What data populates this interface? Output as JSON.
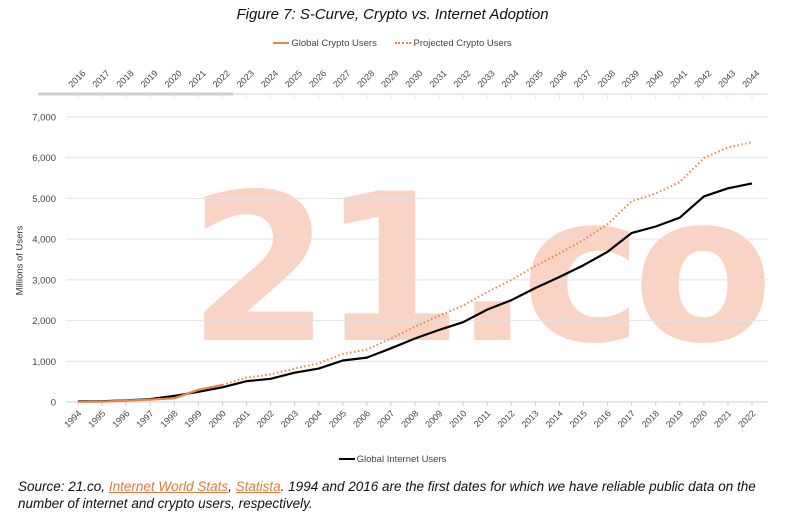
{
  "chart_data": {
    "type": "line",
    "title": "Figure 7: S-Curve, Crypto vs. Internet Adoption",
    "ylabel": "Millions of Users",
    "ylim": [
      0,
      7000
    ],
    "yticks": [
      "0",
      "1,000",
      "2,000",
      "3,000",
      "4,000",
      "5,000",
      "6,000",
      "7,000"
    ],
    "grid": true,
    "x_bottom": [
      "1994",
      "1995",
      "1996",
      "1997",
      "1998",
      "1999",
      "2000",
      "2001",
      "2002",
      "2003",
      "2004",
      "2005",
      "2006",
      "2007",
      "2008",
      "2009",
      "2010",
      "2011",
      "2012",
      "2013",
      "2014",
      "2015",
      "2016",
      "2017",
      "2018",
      "2019",
      "2020",
      "2021",
      "2022"
    ],
    "x_top": [
      "2016",
      "2017",
      "2018",
      "2019",
      "2020",
      "2021",
      "2022",
      "2023",
      "2024",
      "2025",
      "2026",
      "2027",
      "2028",
      "2029",
      "2030",
      "2031",
      "2032",
      "2033",
      "2034",
      "2035",
      "2036",
      "2037",
      "2038",
      "2039",
      "2040",
      "2041",
      "2042",
      "2043",
      "2044"
    ],
    "series": [
      {
        "name": "Global Internet Users",
        "axis": "bottom",
        "color": "#000000",
        "style": "solid",
        "values": [
          16,
          20,
          40,
          70,
          150,
          250,
          360,
          510,
          570,
          720,
          820,
          1020,
          1090,
          1320,
          1560,
          1770,
          1960,
          2270,
          2500,
          2800,
          3070,
          3360,
          3690,
          4150,
          4310,
          4530,
          5050,
          5250,
          5370
        ]
      },
      {
        "name": "Global Crypto Users",
        "axis": "top",
        "color": "#e8834a",
        "style": "solid",
        "values": [
          5,
          10,
          35,
          60,
          90,
          300,
          420
        ]
      },
      {
        "name": "Projected Crypto Users",
        "axis": "top",
        "color": "#e8834a",
        "style": "dotted",
        "start_index": 6,
        "values": [
          420,
          600,
          680,
          820,
          950,
          1180,
          1290,
          1560,
          1850,
          2120,
          2370,
          2700,
          3000,
          3340,
          3650,
          3980,
          4370,
          4930,
          5120,
          5400,
          5990,
          6250,
          6380
        ]
      }
    ],
    "legend_top": [
      "Global Crypto Users",
      "Projected Crypto Users"
    ],
    "legend_bottom": [
      "Global Internet Users"
    ],
    "legend_placement": "top and bottom"
  },
  "watermark": "21.co",
  "source": {
    "prefix": "Source: 21.co, ",
    "link1": "Internet World Stats",
    "sep": ", ",
    "link2": "Statista",
    "suffix": ". 1994 and 2016 are the first dates for which we have reliable public data on the number of internet and crypto users, respectively."
  }
}
